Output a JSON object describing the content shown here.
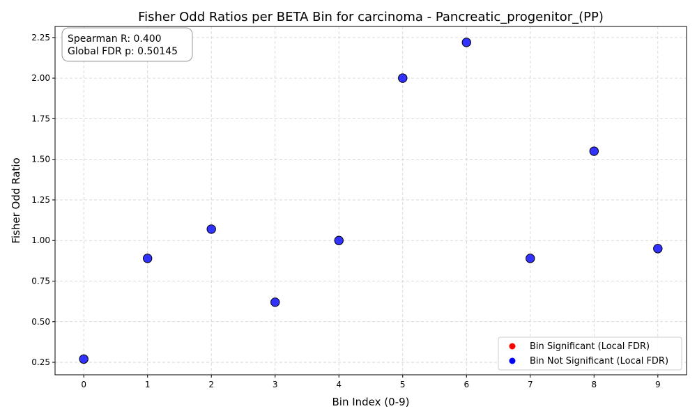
{
  "chart_data": {
    "type": "scatter",
    "title": "Fisher Odd Ratios per BETA Bin for carcinoma - Pancreatic_progenitor_(PP)",
    "xlabel": "Bin Index (0-9)",
    "ylabel": "Fisher Odd Ratio",
    "x": [
      0,
      1,
      2,
      3,
      4,
      5,
      6,
      7,
      8,
      9
    ],
    "y": [
      0.27,
      0.89,
      1.07,
      0.62,
      1.0,
      2.0,
      2.22,
      0.89,
      1.55,
      0.95
    ],
    "xlim": [
      -0.45,
      9.45
    ],
    "ylim": [
      0.173,
      2.318
    ],
    "x_ticks": [
      "0",
      "1",
      "2",
      "3",
      "4",
      "5",
      "6",
      "7",
      "8",
      "9"
    ],
    "y_ticks": [
      "0.25",
      "0.50",
      "0.75",
      "1.00",
      "1.25",
      "1.50",
      "1.75",
      "2.00",
      "2.25"
    ],
    "grid": true,
    "point_color": "#0000ff",
    "point_edge_color": "#000000",
    "annotation": {
      "lines": [
        "Spearman R: 0.400",
        "Global FDR p: 0.50145"
      ]
    },
    "legend": {
      "placement": "lower-right",
      "entries": [
        {
          "label": "Bin Significant (Local FDR)",
          "color": "#ff0000"
        },
        {
          "label": "Bin Not Significant (Local FDR)",
          "color": "#0000ff"
        }
      ]
    }
  }
}
